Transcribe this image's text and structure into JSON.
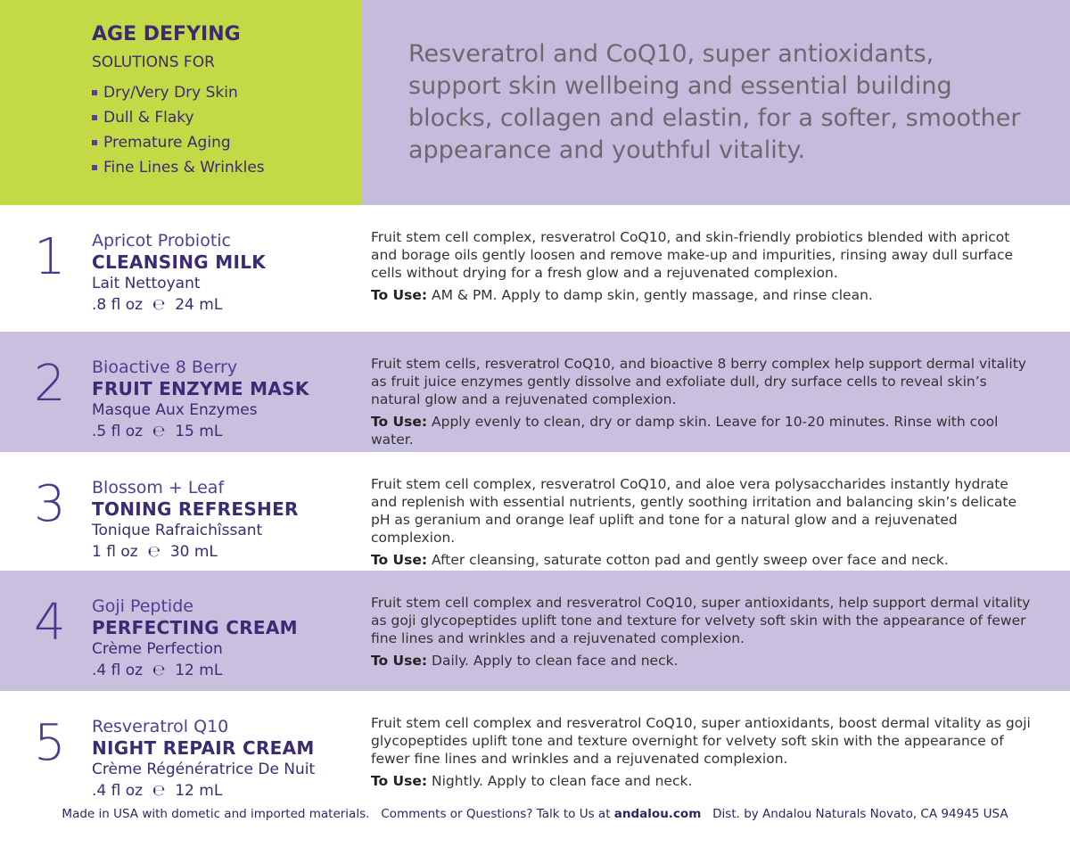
{
  "header": {
    "title": "AGE DEFYING",
    "subtitle": "SOLUTIONS FOR",
    "bullets": [
      "Dry/Very Dry Skin",
      "Dull & Flaky",
      "Premature Aging",
      "Fine Lines & Wrinkles"
    ],
    "intro": "Resveratrol and CoQ10, super antioxidants, support skin wellbeing and essential building blocks, collagen and elastin, for a softer, smoother appearance and youthful vitality."
  },
  "products": [
    {
      "number": "1",
      "name": "Apricot Probiotic",
      "type": "CLEANSING MILK",
      "french": "Lait Nettoyant",
      "size_oz": ".8 fl oz",
      "e_mark": "℮",
      "size_ml": "24 mL",
      "description": "Fruit stem cell complex, resveratrol CoQ10, and skin-friendly probiotics blended with apricot and borage oils gently loosen and remove make-up and impurities, rinsing away dull surface cells without drying for a fresh glow and a rejuvenated complexion.",
      "use_label": "To Use:",
      "use": "AM & PM. Apply to damp skin, gently massage, and rinse clean."
    },
    {
      "number": "2",
      "name": "Bioactive 8 Berry",
      "type": "FRUIT ENZYME MASK",
      "french": "Masque Aux Enzymes",
      "size_oz": ".5 fl oz",
      "e_mark": "℮",
      "size_ml": "15 mL",
      "description": "Fruit stem cells, resveratrol CoQ10, and bioactive 8 berry complex help support dermal vitality as fruit juice enzymes gently dissolve and exfoliate dull, dry surface cells to reveal skin’s natural glow and a rejuvenated complexion.",
      "use_label": "To Use:",
      "use": "Apply evenly to clean, dry or damp skin. Leave for 10-20 minutes. Rinse with cool water."
    },
    {
      "number": "3",
      "name": "Blossom + Leaf",
      "type": "TONING REFRESHER",
      "french": "Tonique Rafraichîssant",
      "size_oz": "1 fl oz",
      "e_mark": "℮",
      "size_ml": "30 mL",
      "description": "Fruit stem cell complex, resveratrol CoQ10, and aloe vera polysaccharides instantly hydrate and replenish with essential nutrients, gently soothing irritation and balancing skin’s delicate pH as geranium and orange leaf uplift and tone for a natural glow and a rejuvenated complexion.",
      "use_label": "To Use:",
      "use": "After cleansing, saturate cotton pad and gently sweep over face and neck."
    },
    {
      "number": "4",
      "name": "Goji Peptide",
      "type": "PERFECTING CREAM",
      "french": "Crème Perfection",
      "size_oz": ".4 fl oz",
      "e_mark": "℮",
      "size_ml": "12 mL",
      "description": "Fruit stem cell complex and resveratrol CoQ10, super antioxidants, help support dermal vitality as goji glycopeptides uplift tone and texture for velvety soft skin with the appearance of fewer fine lines and wrinkles and a rejuvenated complexion.",
      "use_label": "To Use:",
      "use": "Daily. Apply to clean face and neck."
    },
    {
      "number": "5",
      "name": "Resveratrol Q10",
      "type": "NIGHT REPAIR CREAM",
      "french": "Crème Régénératrice De Nuit",
      "size_oz": ".4 fl oz",
      "e_mark": "℮",
      "size_ml": "12 mL",
      "description": "Fruit stem cell complex and resveratrol CoQ10, super antioxidants, boost dermal vitality as goji glycopeptides uplift tone and texture overnight for velvety soft skin with the appearance of fewer fine lines and wrinkles and a rejuvenated complexion.",
      "use_label": "To Use:",
      "use": "Nightly. Apply to clean face and neck."
    }
  ],
  "footer": {
    "made": "Made in USA with dometic and imported materials.",
    "contact": "Comments or Questions? Talk to Us at",
    "site": "andalou.com",
    "dist": "Dist. by Andalou Naturals Novato, CA 94945 USA"
  }
}
